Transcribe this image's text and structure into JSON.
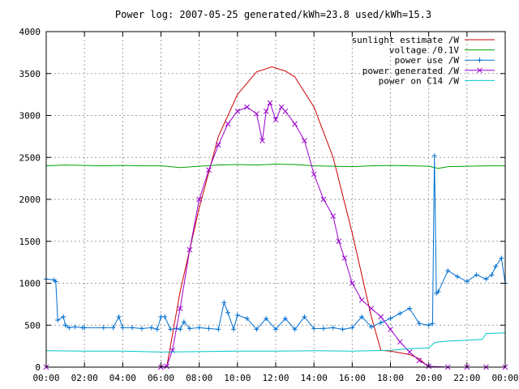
{
  "chart_data": {
    "type": "line",
    "title": "Power log: 2007-05-25 generated/kWh=23.8 used/kWh=15.3",
    "xlabel": "",
    "ylabel": "",
    "xlim": [
      0,
      24
    ],
    "ylim": [
      0,
      4000
    ],
    "grid": true,
    "legend_position": "top-right",
    "x_tick_labels": [
      "00:00",
      "02:00",
      "04:00",
      "06:00",
      "08:00",
      "10:00",
      "12:00",
      "14:00",
      "16:00",
      "18:00",
      "20:00",
      "22:00",
      "00:00"
    ],
    "y_tick_labels": [
      "0",
      "500",
      "1000",
      "1500",
      "2000",
      "2500",
      "3000",
      "3500",
      "4000"
    ],
    "series": [
      {
        "name": "sunlight estimate /W",
        "color": "#cc0000",
        "marker": "none",
        "x": [
          6.3,
          7,
          8,
          9,
          10,
          11,
          11.8,
          12.5,
          13,
          14,
          15,
          16,
          17,
          17.5,
          18,
          18.5,
          19,
          19.5,
          20
        ],
        "values": [
          0,
          900,
          1900,
          2750,
          3250,
          3520,
          3580,
          3530,
          3460,
          3100,
          2500,
          1600,
          600,
          200,
          190,
          170,
          150,
          100,
          0
        ]
      },
      {
        "name": "voltage /0.1V",
        "color": "#00a000",
        "marker": "none",
        "x": [
          0,
          1,
          2,
          3,
          4,
          5,
          6,
          6.5,
          7,
          8,
          9,
          10,
          11,
          12,
          13,
          14,
          15,
          16,
          17,
          18,
          19,
          20,
          20.5,
          21,
          22,
          23,
          24
        ],
        "values": [
          2400,
          2410,
          2405,
          2400,
          2405,
          2400,
          2400,
          2390,
          2380,
          2395,
          2410,
          2415,
          2410,
          2420,
          2415,
          2400,
          2395,
          2390,
          2400,
          2405,
          2400,
          2395,
          2370,
          2390,
          2395,
          2400,
          2400
        ]
      },
      {
        "name": "power use /W",
        "color": "#0070d0",
        "marker": "plus",
        "x": [
          0,
          0.4,
          0.5,
          0.6,
          0.9,
          1.0,
          1.2,
          1.5,
          1.9,
          2.0,
          3.0,
          3.5,
          3.8,
          4.0,
          4.5,
          5.0,
          5.5,
          5.8,
          6.0,
          6.2,
          6.5,
          6.8,
          7.0,
          7.2,
          7.5,
          8.0,
          8.5,
          9.0,
          9.3,
          9.5,
          9.8,
          10.0,
          10.5,
          11.0,
          11.5,
          12.0,
          12.5,
          13.0,
          13.5,
          14.0,
          14.5,
          15.0,
          15.5,
          16.0,
          16.5,
          17.0,
          17.5,
          18.0,
          18.5,
          19.0,
          19.5,
          20.0,
          20.2,
          20.3,
          20.4,
          20.5,
          21.0,
          21.5,
          22.0,
          22.5,
          23.0,
          23.3,
          23.5,
          23.8,
          24.0
        ],
        "values": [
          1050,
          1040,
          1020,
          560,
          600,
          500,
          470,
          480,
          470,
          470,
          470,
          470,
          600,
          470,
          470,
          460,
          470,
          450,
          600,
          600,
          450,
          460,
          450,
          540,
          460,
          470,
          460,
          450,
          770,
          650,
          450,
          620,
          580,
          450,
          580,
          450,
          580,
          450,
          600,
          460,
          460,
          470,
          450,
          470,
          600,
          480,
          530,
          580,
          640,
          700,
          520,
          500,
          520,
          2520,
          880,
          900,
          1150,
          1080,
          1020,
          1100,
          1050,
          1100,
          1200,
          1300,
          1000
        ]
      },
      {
        "name": "power generated /W",
        "color": "#9900cc",
        "marker": "x",
        "x": [
          0,
          6.0,
          6.3,
          6.6,
          7.0,
          7.5,
          8.0,
          8.5,
          9.0,
          9.5,
          10.0,
          10.5,
          11.0,
          11.3,
          11.5,
          11.7,
          12.0,
          12.3,
          12.5,
          13.0,
          13.5,
          14.0,
          14.5,
          15.0,
          15.3,
          15.6,
          16.0,
          16.5,
          17.0,
          17.5,
          18.0,
          18.5,
          19.0,
          19.5,
          20.0,
          21.0,
          22.0,
          23.0,
          24.0
        ],
        "values": [
          0,
          0,
          10,
          200,
          700,
          1400,
          2000,
          2350,
          2650,
          2900,
          3050,
          3100,
          3020,
          2700,
          3050,
          3150,
          2950,
          3100,
          3050,
          2900,
          2700,
          2300,
          2000,
          1800,
          1500,
          1300,
          1000,
          800,
          700,
          600,
          450,
          300,
          180,
          80,
          10,
          0,
          0,
          0,
          0
        ]
      },
      {
        "name": "power on C14 /W",
        "color": "#00c8c8",
        "marker": "none",
        "x": [
          0,
          2,
          4,
          6,
          8,
          10,
          12,
          14,
          16,
          18,
          19,
          20,
          20.3,
          20.5,
          21,
          22,
          22.8,
          23.0,
          24
        ],
        "values": [
          195,
          190,
          190,
          180,
          185,
          190,
          190,
          195,
          190,
          200,
          220,
          230,
          290,
          300,
          310,
          320,
          330,
          400,
          410
        ]
      }
    ]
  }
}
